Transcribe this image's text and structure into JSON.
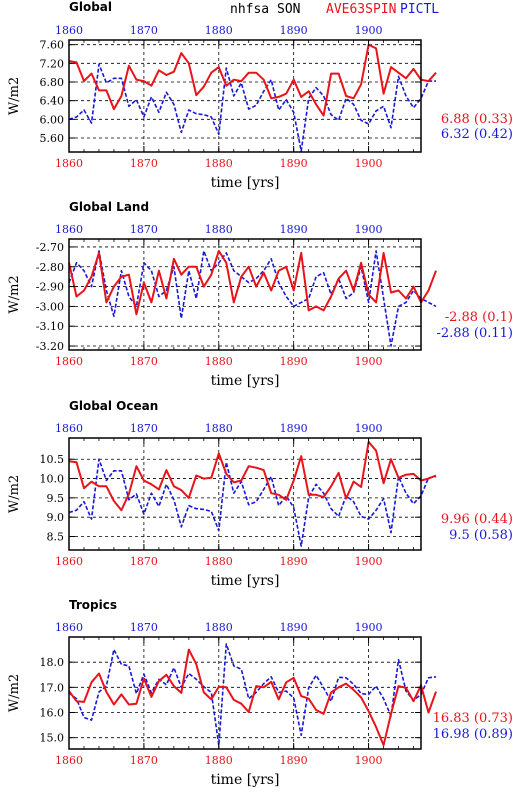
{
  "header": {
    "variable": "nhfsa",
    "season": "SON",
    "exp_label": "AVE63SPIN",
    "ctl_label": "PICTL",
    "exp_color": "#e8141a",
    "ctl_color": "#1818d8"
  },
  "x_axis_label": "time [yrs]",
  "y_axis_label": "W/m2",
  "chart_data": [
    {
      "type": "line",
      "title": "Global",
      "xlim": [
        1860,
        1907
      ],
      "ylim": [
        5.3,
        7.7
      ],
      "x_ticks": [
        1860,
        1870,
        1880,
        1890,
        1900
      ],
      "y_ticks": [
        "5.60",
        "6.00",
        "6.40",
        "6.80",
        "7.20",
        "7.60"
      ],
      "y_tick_values": [
        5.6,
        6.0,
        6.4,
        6.8,
        7.2,
        7.6
      ],
      "x_start": 1860,
      "series": [
        {
          "name": "AVE63SPIN",
          "stat_text": "6.88 (0.33)",
          "values": [
            7.25,
            7.22,
            6.82,
            6.98,
            6.62,
            6.62,
            6.22,
            6.5,
            7.15,
            6.85,
            6.82,
            6.72,
            7.05,
            6.95,
            7.02,
            7.42,
            7.2,
            6.52,
            6.7,
            7.0,
            7.12,
            6.72,
            6.85,
            6.82,
            7.0,
            7.0,
            6.85,
            6.45,
            6.48,
            6.55,
            6.85,
            6.48,
            6.6,
            6.32,
            6.08,
            6.98,
            6.98,
            6.5,
            6.45,
            6.75,
            7.6,
            7.52,
            6.55,
            7.12,
            7.0,
            6.88,
            7.08,
            6.85,
            6.82,
            7.0
          ]
        },
        {
          "name": "PICTL",
          "stat_text": "6.32 (0.42)",
          "values": [
            6.0,
            6.05,
            6.2,
            5.92,
            7.18,
            6.78,
            6.88,
            6.88,
            6.28,
            6.42,
            6.05,
            6.48,
            6.15,
            6.58,
            6.32,
            5.72,
            6.2,
            6.12,
            6.1,
            6.05,
            5.68,
            7.1,
            6.5,
            6.78,
            6.22,
            6.3,
            6.6,
            6.85,
            6.2,
            6.42,
            6.15,
            5.32,
            6.45,
            6.68,
            6.5,
            6.1,
            5.98,
            6.45,
            6.32,
            5.98,
            5.9,
            6.18,
            6.28,
            5.82,
            6.92,
            6.5,
            6.25,
            6.45,
            6.82,
            6.82
          ]
        }
      ]
    },
    {
      "type": "line",
      "title": "Global Land",
      "xlim": [
        1860,
        1907
      ],
      "ylim": [
        -3.22,
        -2.66
      ],
      "x_ticks": [
        1860,
        1870,
        1880,
        1890,
        1900
      ],
      "y_ticks": [
        "-2.70",
        "-2.80",
        "-2.90",
        "-3.00",
        "-3.10",
        "-3.20"
      ],
      "y_tick_values": [
        -2.7,
        -2.8,
        -2.9,
        -3.0,
        -3.1,
        -3.2
      ],
      "x_start": 1860,
      "series": [
        {
          "name": "AVE63SPIN",
          "stat_text": "-2.88 (0.1)",
          "values": [
            -2.78,
            -2.95,
            -2.92,
            -2.85,
            -2.73,
            -2.98,
            -2.9,
            -2.85,
            -2.84,
            -3.04,
            -2.88,
            -2.98,
            -2.82,
            -2.96,
            -2.76,
            -2.84,
            -2.8,
            -2.8,
            -2.9,
            -2.84,
            -2.72,
            -2.78,
            -2.98,
            -2.85,
            -2.8,
            -2.9,
            -2.83,
            -2.92,
            -2.82,
            -2.8,
            -2.92,
            -2.73,
            -3.02,
            -3.0,
            -3.02,
            -2.95,
            -2.86,
            -2.82,
            -2.92,
            -2.78,
            -2.94,
            -2.98,
            -2.73,
            -2.93,
            -2.92,
            -2.96,
            -2.9,
            -2.98,
            -2.92,
            -2.82
          ]
        },
        {
          "name": "PICTL",
          "stat_text": "-2.88 (0.11)",
          "values": [
            -2.88,
            -2.78,
            -2.82,
            -2.9,
            -2.72,
            -2.92,
            -3.05,
            -2.82,
            -2.95,
            -3.0,
            -2.78,
            -2.82,
            -2.95,
            -2.92,
            -2.8,
            -3.06,
            -2.82,
            -2.96,
            -2.72,
            -2.82,
            -2.78,
            -2.73,
            -2.82,
            -2.85,
            -2.88,
            -2.86,
            -2.82,
            -2.76,
            -2.88,
            -2.95,
            -3.0,
            -2.98,
            -2.96,
            -2.85,
            -2.83,
            -2.94,
            -2.86,
            -2.96,
            -2.93,
            -2.8,
            -2.98,
            -2.72,
            -2.96,
            -3.2,
            -3.0,
            -2.98,
            -2.92,
            -2.96,
            -2.98,
            -3.0
          ]
        }
      ]
    },
    {
      "type": "line",
      "title": "Global Ocean",
      "xlim": [
        1860,
        1907
      ],
      "ylim": [
        8.15,
        11.05
      ],
      "x_ticks": [
        1860,
        1870,
        1880,
        1890,
        1900
      ],
      "y_ticks": [
        "8.5",
        "9.0",
        "9.5",
        "10.0",
        "10.5"
      ],
      "y_tick_values": [
        8.5,
        9.0,
        9.5,
        10.0,
        10.5
      ],
      "x_start": 1860,
      "series": [
        {
          "name": "AVE63SPIN",
          "stat_text": "9.96 (0.44)",
          "values": [
            10.45,
            10.42,
            9.75,
            9.92,
            9.8,
            9.8,
            9.42,
            9.18,
            9.6,
            10.32,
            9.95,
            9.85,
            9.72,
            10.22,
            9.8,
            9.7,
            9.5,
            10.08,
            10.0,
            10.02,
            10.65,
            10.12,
            9.9,
            9.95,
            10.32,
            10.28,
            10.22,
            9.62,
            9.58,
            9.45,
            9.95,
            10.58,
            9.58,
            9.58,
            9.52,
            9.8,
            10.15,
            9.48,
            9.92,
            9.78,
            10.95,
            10.72,
            9.88,
            10.5,
            10.02,
            10.1,
            10.12,
            9.95,
            10.0,
            10.08
          ]
        },
        {
          "name": "PICTL",
          "stat_text": "9.5 (0.58)",
          "values": [
            9.12,
            9.18,
            9.4,
            8.95,
            10.5,
            9.95,
            10.2,
            10.2,
            9.45,
            9.6,
            9.08,
            9.62,
            9.28,
            9.85,
            9.45,
            8.75,
            9.3,
            9.22,
            9.2,
            9.15,
            8.65,
            10.42,
            9.62,
            9.92,
            9.32,
            9.4,
            9.72,
            10.05,
            9.3,
            9.55,
            9.25,
            8.25,
            9.52,
            9.85,
            9.62,
            9.22,
            9.02,
            9.55,
            9.4,
            9.02,
            8.95,
            9.18,
            9.48,
            8.6,
            10.05,
            9.62,
            9.35,
            9.55,
            10.02,
            10.05
          ]
        }
      ]
    },
    {
      "type": "line",
      "title": "Tropics",
      "xlim": [
        1860,
        1907
      ],
      "ylim": [
        14.55,
        19.0
      ],
      "x_ticks": [
        1860,
        1870,
        1880,
        1890,
        1900
      ],
      "y_ticks": [
        "15.0",
        "16.0",
        "17.0",
        "18.0"
      ],
      "y_tick_values": [
        15.0,
        16.0,
        17.0,
        18.0
      ],
      "x_start": 1860,
      "series": [
        {
          "name": "AVE63SPIN",
          "stat_text": "16.83 (0.73)",
          "values": [
            16.85,
            16.45,
            16.42,
            17.2,
            17.55,
            16.82,
            16.32,
            16.72,
            16.32,
            16.35,
            17.35,
            16.62,
            17.25,
            17.5,
            17.05,
            16.78,
            18.5,
            17.92,
            16.8,
            16.52,
            17.02,
            17.0,
            16.5,
            16.35,
            16.02,
            17.05,
            17.0,
            17.22,
            16.52,
            17.2,
            17.38,
            16.65,
            16.55,
            16.1,
            15.95,
            16.8,
            17.0,
            17.15,
            16.9,
            16.6,
            16.05,
            15.42,
            14.7,
            15.95,
            17.05,
            16.98,
            16.45,
            17.08,
            16.0,
            16.83
          ]
        },
        {
          "name": "PICTL",
          "stat_text": "16.98 (0.89)",
          "values": [
            16.78,
            16.55,
            15.8,
            15.7,
            16.82,
            17.05,
            18.5,
            17.92,
            17.85,
            16.75,
            17.52,
            16.78,
            17.32,
            17.1,
            17.78,
            17.0,
            17.55,
            17.32,
            17.02,
            16.8,
            14.7,
            18.72,
            17.85,
            17.72,
            16.55,
            16.8,
            17.15,
            17.42,
            16.8,
            16.85,
            16.58,
            15.1,
            16.98,
            17.48,
            16.98,
            16.45,
            17.4,
            17.38,
            17.12,
            16.75,
            16.72,
            17.05,
            16.55,
            15.85,
            18.1,
            16.85,
            16.48,
            16.72,
            17.38,
            17.42
          ]
        }
      ]
    }
  ]
}
